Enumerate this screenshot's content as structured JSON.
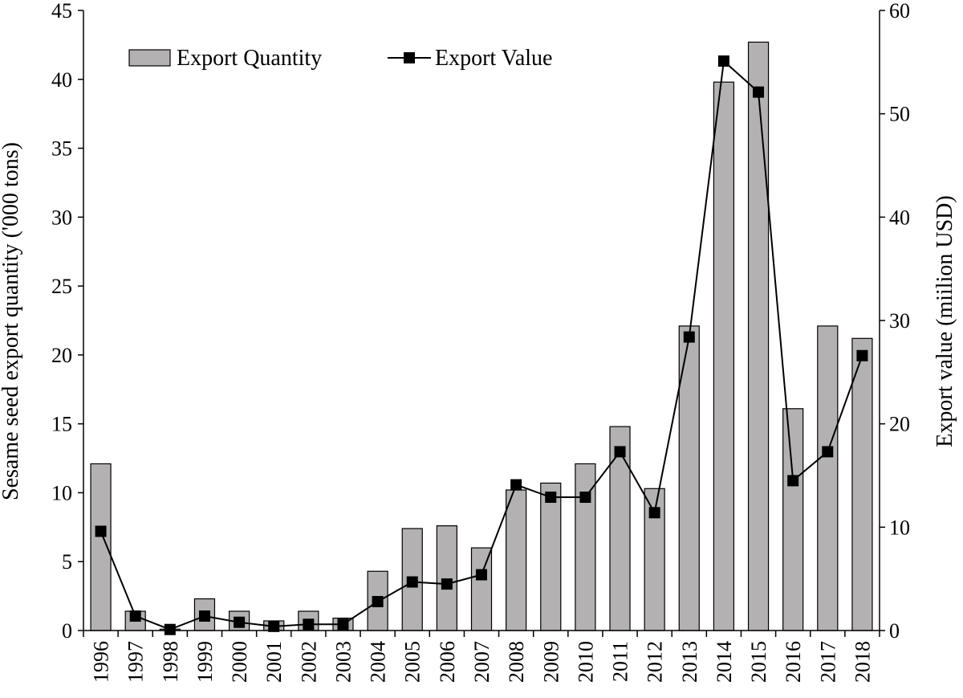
{
  "chart_data": {
    "type": "bar+line",
    "categories": [
      "1996",
      "1997",
      "1998",
      "1999",
      "2000",
      "2001",
      "2002",
      "2003",
      "2004",
      "2005",
      "2006",
      "2007",
      "2008",
      "2009",
      "2010",
      "2011",
      "2012",
      "2013",
      "2014",
      "2015",
      "2016",
      "2017",
      "2018"
    ],
    "series": [
      {
        "name": "Export Quantity",
        "type": "bar",
        "axis": "left",
        "values": [
          12.1,
          1.4,
          0.1,
          2.3,
          1.4,
          0.7,
          1.4,
          0.9,
          4.3,
          7.4,
          7.6,
          6.0,
          10.2,
          10.7,
          12.1,
          14.8,
          10.3,
          22.1,
          39.8,
          42.7,
          16.1,
          22.1,
          21.2
        ]
      },
      {
        "name": "Export Value",
        "type": "line",
        "axis": "right",
        "values": [
          9.6,
          1.4,
          0.1,
          1.4,
          0.8,
          0.4,
          0.6,
          0.6,
          2.8,
          4.7,
          4.5,
          5.4,
          14.1,
          12.9,
          12.9,
          17.3,
          11.4,
          28.4,
          55.1,
          52.1,
          14.5,
          17.3,
          26.6
        ]
      }
    ],
    "ylabel": "Sesame seed export quantity ('000 tons)",
    "y2label": "Export value (miilion USD)",
    "ylim": [
      0,
      45
    ],
    "y2lim": [
      0,
      60
    ],
    "yticks": [
      "0",
      "5",
      "10",
      "15",
      "20",
      "25",
      "30",
      "35",
      "40",
      "45"
    ],
    "y2ticks": [
      "0",
      "10",
      "20",
      "30",
      "40",
      "50",
      "60"
    ],
    "grid": false,
    "legend_position": "top-left",
    "colors": {
      "bar_fill": "#b3b1b1",
      "bar_stroke": "#000000",
      "line": "#000000",
      "marker": "#000000"
    }
  }
}
